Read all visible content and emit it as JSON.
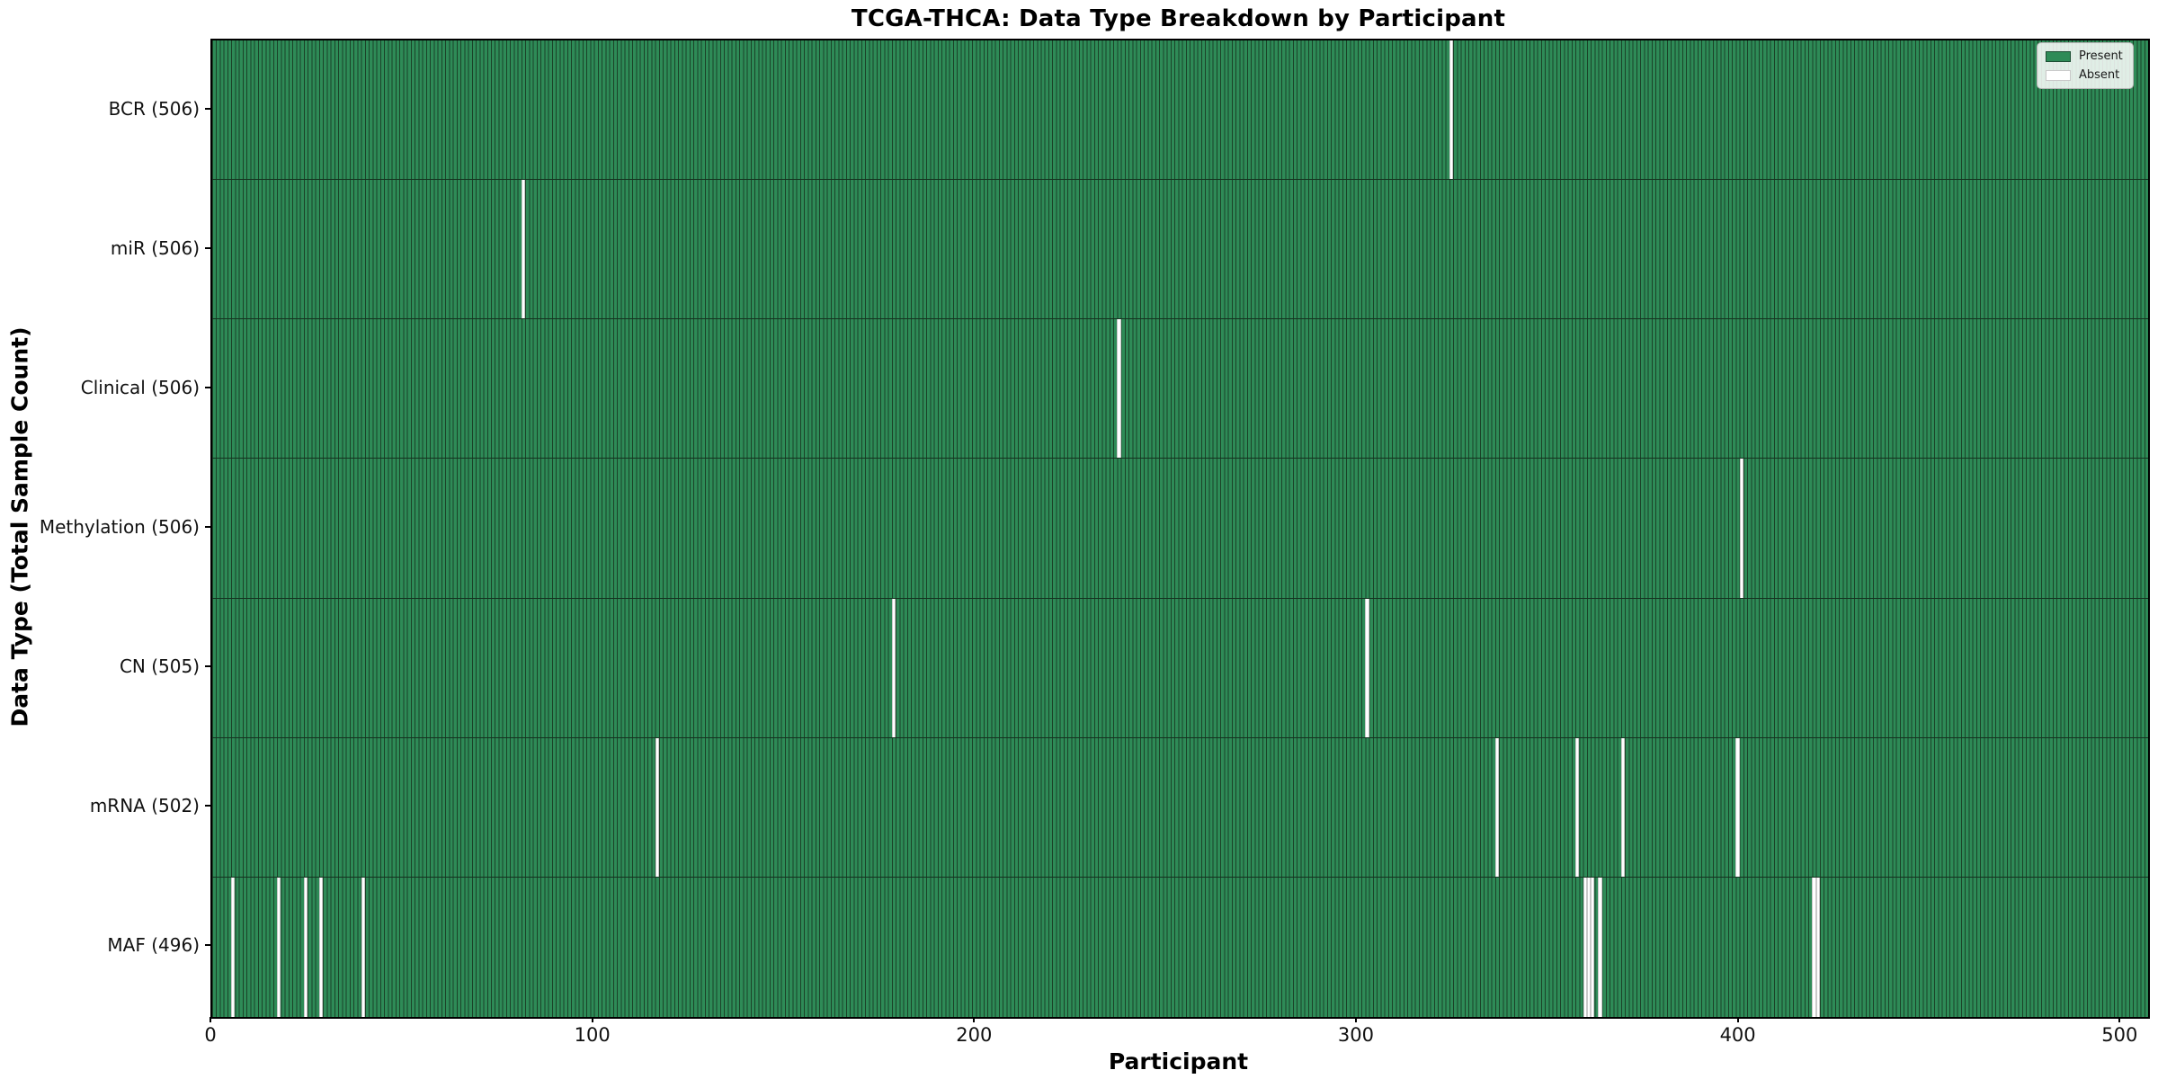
{
  "figure": {
    "title": "TCGA-THCA: Data Type Breakdown by Participant",
    "x_axis_label": "Participant",
    "y_axis_label": "Data Type (Total Sample Count)"
  },
  "legend": {
    "items": [
      {
        "label": "Present",
        "color": "#2e8b57",
        "edge": "#1b4d32"
      },
      {
        "label": "Absent",
        "color": "#ffffff",
        "edge": "#c9c9c9"
      }
    ],
    "position": "upper right"
  },
  "colors": {
    "present_fill": "#2e8b57",
    "bar_edge": "#1b4228",
    "absent_fill": "#ffffff",
    "axis": "#000000"
  },
  "chart_data": {
    "type": "heatmap",
    "title": "TCGA-THCA: Data Type Breakdown by Participant",
    "xlabel": "Participant",
    "ylabel": "Data Type (Total Sample Count)",
    "total_participants": 507,
    "x_ticks": [
      0,
      100,
      200,
      300,
      400,
      500
    ],
    "xlim": [
      0,
      507
    ],
    "grid": false,
    "legend": [
      "Present",
      "Absent"
    ],
    "legend_position": "upper right",
    "rows": [
      {
        "label": "BCR",
        "present_count": 506,
        "absent_participants": [
          324
        ]
      },
      {
        "label": "miR",
        "present_count": 506,
        "absent_participants": [
          81
        ]
      },
      {
        "label": "Clinical",
        "present_count": 506,
        "absent_participants": [
          237
        ]
      },
      {
        "label": "Methylation",
        "present_count": 506,
        "absent_participants": [
          400
        ]
      },
      {
        "label": "CN",
        "present_count": 505,
        "absent_participants": [
          178,
          302
        ]
      },
      {
        "label": "mRNA",
        "present_count": 502,
        "absent_participants": [
          116,
          336,
          357,
          369,
          399
        ]
      },
      {
        "label": "MAF",
        "present_count": 496,
        "absent_participants": [
          5,
          17,
          24,
          28,
          39,
          359,
          360,
          361,
          363,
          419,
          420
        ]
      }
    ]
  }
}
